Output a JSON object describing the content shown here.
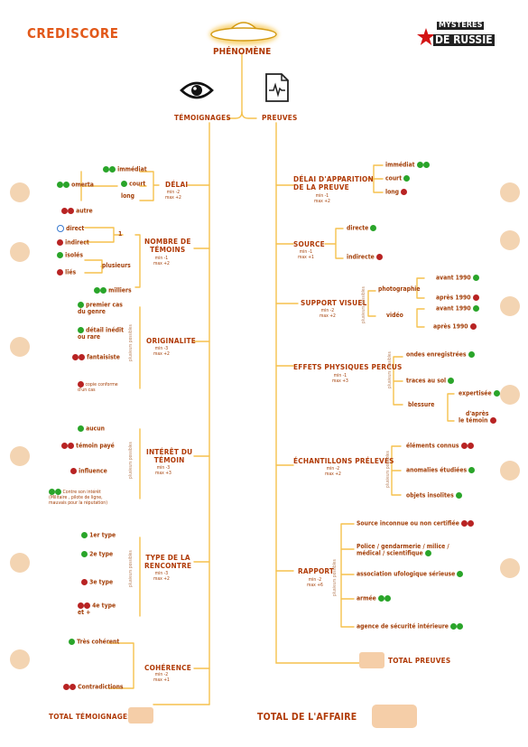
{
  "header": {
    "crediscore": "CREDISCORE",
    "phenomene": "PHÉNOMÈNE",
    "mysteres": "MYSTÈRES",
    "de_russie": "DE RUSSIE",
    "temoignages": "TÉMOIGNAGES",
    "preuves": "PREUVES"
  },
  "left": {
    "delai": {
      "title": "DÉLAI",
      "minmax": "min -2\nmax +2",
      "immediat": "immédiat",
      "court": "court",
      "long": "long",
      "omerta": "omerta",
      "autre": "autre"
    },
    "nombre": {
      "title": "NOMBRE DE\nTÉMOINS",
      "minmax": "min -1\nmax +2",
      "direct": "direct",
      "indirect": "indirect",
      "un": "1",
      "isoles": "isolés",
      "plusieurs": "plusieurs",
      "lies": "liés",
      "milliers": "milliers"
    },
    "originalite": {
      "title": "ORIGINALITE",
      "minmax": "min -3\nmax +2",
      "vert": "plusieurs possibles",
      "premier": "premier cas\ndu genre",
      "detail": "détail inédit\nou rare",
      "fantaisiste": "fantaisiste",
      "copie": "copie conforme\nd'un cas"
    },
    "interet": {
      "title": "INTÉRÊT DU\nTÉMOIN",
      "minmax": "min -3\nmax +3",
      "vert": "plusieurs possibles",
      "aucun": "aucun",
      "paye": "témoin payé",
      "influence": "influence",
      "contre": "Contre son intérêt\n(Militaire , pilote de ligne,\nmauvais pour la réputation)"
    },
    "rencontre": {
      "title": "TYPE DE LA\nRENCONTRE",
      "minmax": "min -3\nmax +2",
      "vert": "plusieurs possibles",
      "t1": "1er type",
      "t2": "2e type",
      "t3": "3e type",
      "t4": "4e type\net +"
    },
    "coherence": {
      "title": "COHÉRENCE",
      "minmax": "min -2\nmax +1",
      "tres": "Très cohérent",
      "contra": "Contradictions"
    },
    "total": "TOTAL TÉMOIGNAGES"
  },
  "right": {
    "delai": {
      "title": "DÉLAI D'APPARITION\nDE LA PREUVE",
      "minmax": "min -1\nmax +2",
      "immediat": "immédiat",
      "court": "court",
      "long": "long"
    },
    "source": {
      "title": "SOURCE",
      "minmax": "min -1\nmax +1",
      "directe": "directe",
      "indirecte": "indirecte"
    },
    "support": {
      "title": "SUPPORT VISUEL",
      "minmax": "min -2\nmax +2",
      "vert": "plusieurs possibles",
      "photo": "photographie",
      "video": "vidéo",
      "av1": "avant 1990",
      "ap1": "après 1990",
      "av2": "avant 1990",
      "ap2": "après 1990"
    },
    "effets": {
      "title": "EFFETS PHYSIQUES PERCUS",
      "minmax": "min -1\nmax +3",
      "vert": "plusieurs possibles",
      "ondes": "ondes enregistrées",
      "traces": "traces au sol",
      "blessure": "blessure",
      "expertisee": "expertisée",
      "apres": "d'après\nle témoin"
    },
    "echantillons": {
      "title": "ÉCHANTILLONS PRÉLEVÉS",
      "minmax": "min -2\nmax +2",
      "vert": "plusieurs possibles",
      "connus": "éléments connus",
      "anomalies": "anomalies étudiées",
      "insolites": "objets insolites"
    },
    "rapport": {
      "title": "RAPPORT",
      "minmax": "min -2\nmax +6",
      "vert": "plusieurs possibles",
      "source": "Source inconnue ou non certifiée",
      "police": "Police / gendarmerie / milice /\nmédical / scientifique",
      "asso": "association ufologique sérieuse",
      "armee": "armée",
      "agence": "agence de sécurité intérieure"
    },
    "total": "TOTAL PREUVES"
  },
  "total_affaire": "TOTAL DE L'AFFAIRE",
  "colors": {
    "line": "#f5c14d",
    "title": "#b03a06",
    "plus": "#2aa52a",
    "minus": "#b82323"
  }
}
